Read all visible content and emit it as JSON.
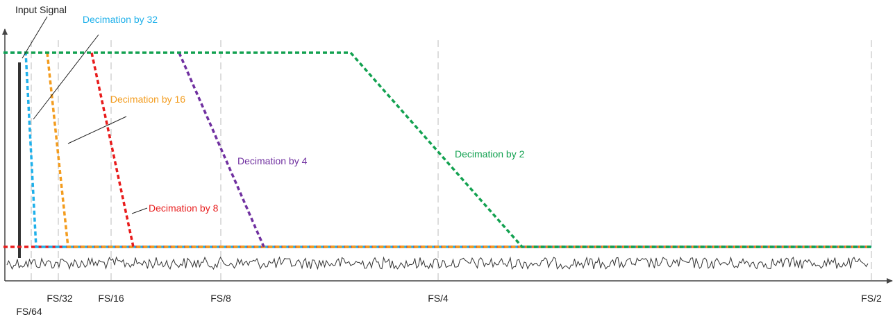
{
  "annotations": {
    "input_signal": "Input Signal",
    "decimation_32": "Decimation by 32",
    "decimation_16": "Decimation by 16",
    "decimation_8": "Decimation by 8",
    "decimation_4": "Decimation by 4",
    "decimation_2": "Decimation by 2"
  },
  "x_axis": {
    "labels": [
      "FS/64",
      "FS/32",
      "FS/16",
      "FS/8",
      "FS/4",
      "FS/2"
    ]
  }
}
